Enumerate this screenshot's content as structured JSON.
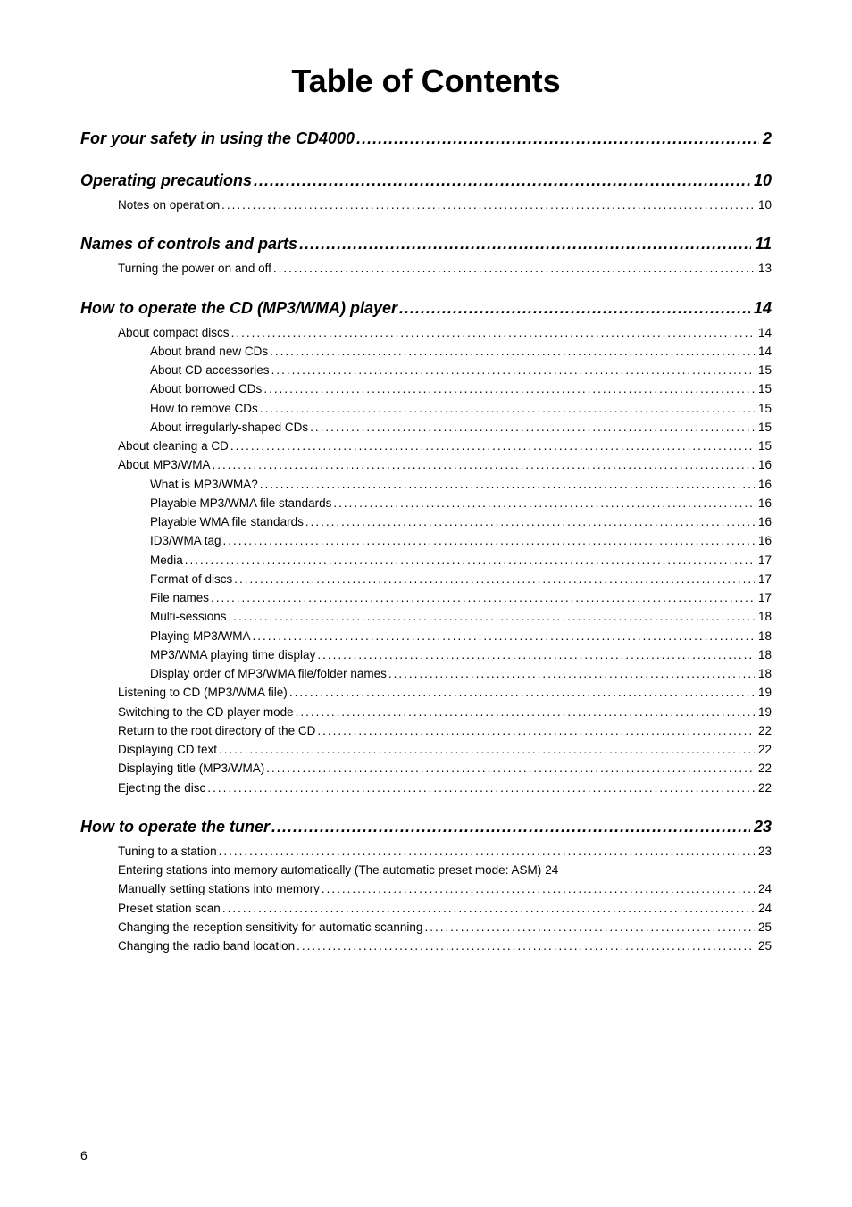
{
  "title": "Table of Contents",
  "page_number": "6",
  "dots_h1": "..........................................................................................................................",
  "dots_sub": "..................................................................................................................................................................................................................",
  "entries": [
    {
      "level": 1,
      "label": "For your safety in using the CD4000",
      "page": "2"
    },
    {
      "level": 1,
      "label": "Operating precautions",
      "page": "10"
    },
    {
      "level": 2,
      "label": "Notes on operation ",
      "page": " 10"
    },
    {
      "level": 1,
      "label": "Names of controls and parts",
      "page": "11"
    },
    {
      "level": 2,
      "label": "Turning the power on and off",
      "page": " 13"
    },
    {
      "level": 1,
      "label": "How to operate the CD (MP3/WMA) player ",
      "page": "14"
    },
    {
      "level": 2,
      "label": "About compact discs ",
      "page": " 14"
    },
    {
      "level": 3,
      "label": "About brand new CDs ",
      "page": " 14"
    },
    {
      "level": 3,
      "label": "About CD accessories",
      "page": " 15"
    },
    {
      "level": 3,
      "label": "About borrowed CDs ",
      "page": " 15"
    },
    {
      "level": 3,
      "label": "How to remove CDs ",
      "page": " 15"
    },
    {
      "level": 3,
      "label": "About irregularly-shaped CDs ",
      "page": " 15"
    },
    {
      "level": 2,
      "label": "About cleaning a CD",
      "page": " 15"
    },
    {
      "level": 2,
      "label": "About MP3/WMA ",
      "page": " 16"
    },
    {
      "level": 3,
      "label": "What is MP3/WMA? ",
      "page": " 16"
    },
    {
      "level": 3,
      "label": "Playable MP3/WMA file standards ",
      "page": " 16"
    },
    {
      "level": 3,
      "label": "Playable WMA file standards ",
      "page": " 16"
    },
    {
      "level": 3,
      "label": "ID3/WMA tag",
      "page": " 16"
    },
    {
      "level": 3,
      "label": "Media ",
      "page": " 17"
    },
    {
      "level": 3,
      "label": "Format of discs",
      "page": " 17"
    },
    {
      "level": 3,
      "label": "File names",
      "page": " 17"
    },
    {
      "level": 3,
      "label": "Multi-sessions ",
      "page": " 18"
    },
    {
      "level": 3,
      "label": "Playing MP3/WMA ",
      "page": " 18"
    },
    {
      "level": 3,
      "label": "MP3/WMA playing time display",
      "page": " 18"
    },
    {
      "level": 3,
      "label": "Display order of MP3/WMA file/folder names ",
      "page": " 18"
    },
    {
      "level": 2,
      "label": "Listening to CD  (MP3/WMA file)",
      "page": " 19"
    },
    {
      "level": 2,
      "label": "Switching to the CD player mode ",
      "page": " 19"
    },
    {
      "level": 2,
      "label": "Return to the root directory of the CD",
      "page": " 22"
    },
    {
      "level": 2,
      "label": "Displaying CD text ",
      "page": " 22"
    },
    {
      "level": 2,
      "label": "Displaying title (MP3/WMA)",
      "page": " 22"
    },
    {
      "level": 2,
      "label": "Ejecting the disc ",
      "page": " 22"
    },
    {
      "level": 1,
      "label": "How to operate the tuner",
      "page": "23"
    },
    {
      "level": 2,
      "label": "Tuning to a station ",
      "page": " 23"
    },
    {
      "level": 2,
      "label": "Entering stations into memory automatically (The automatic preset mode: ASM) ",
      "page": " 24",
      "nodots": true
    },
    {
      "level": 2,
      "label": "Manually setting stations into memory ",
      "page": " 24"
    },
    {
      "level": 2,
      "label": "Preset station scan ",
      "page": " 24"
    },
    {
      "level": 2,
      "label": "Changing the reception sensitivity for automatic scanning",
      "page": " 25"
    },
    {
      "level": 2,
      "label": "Changing the radio band location ",
      "page": " 25"
    }
  ]
}
